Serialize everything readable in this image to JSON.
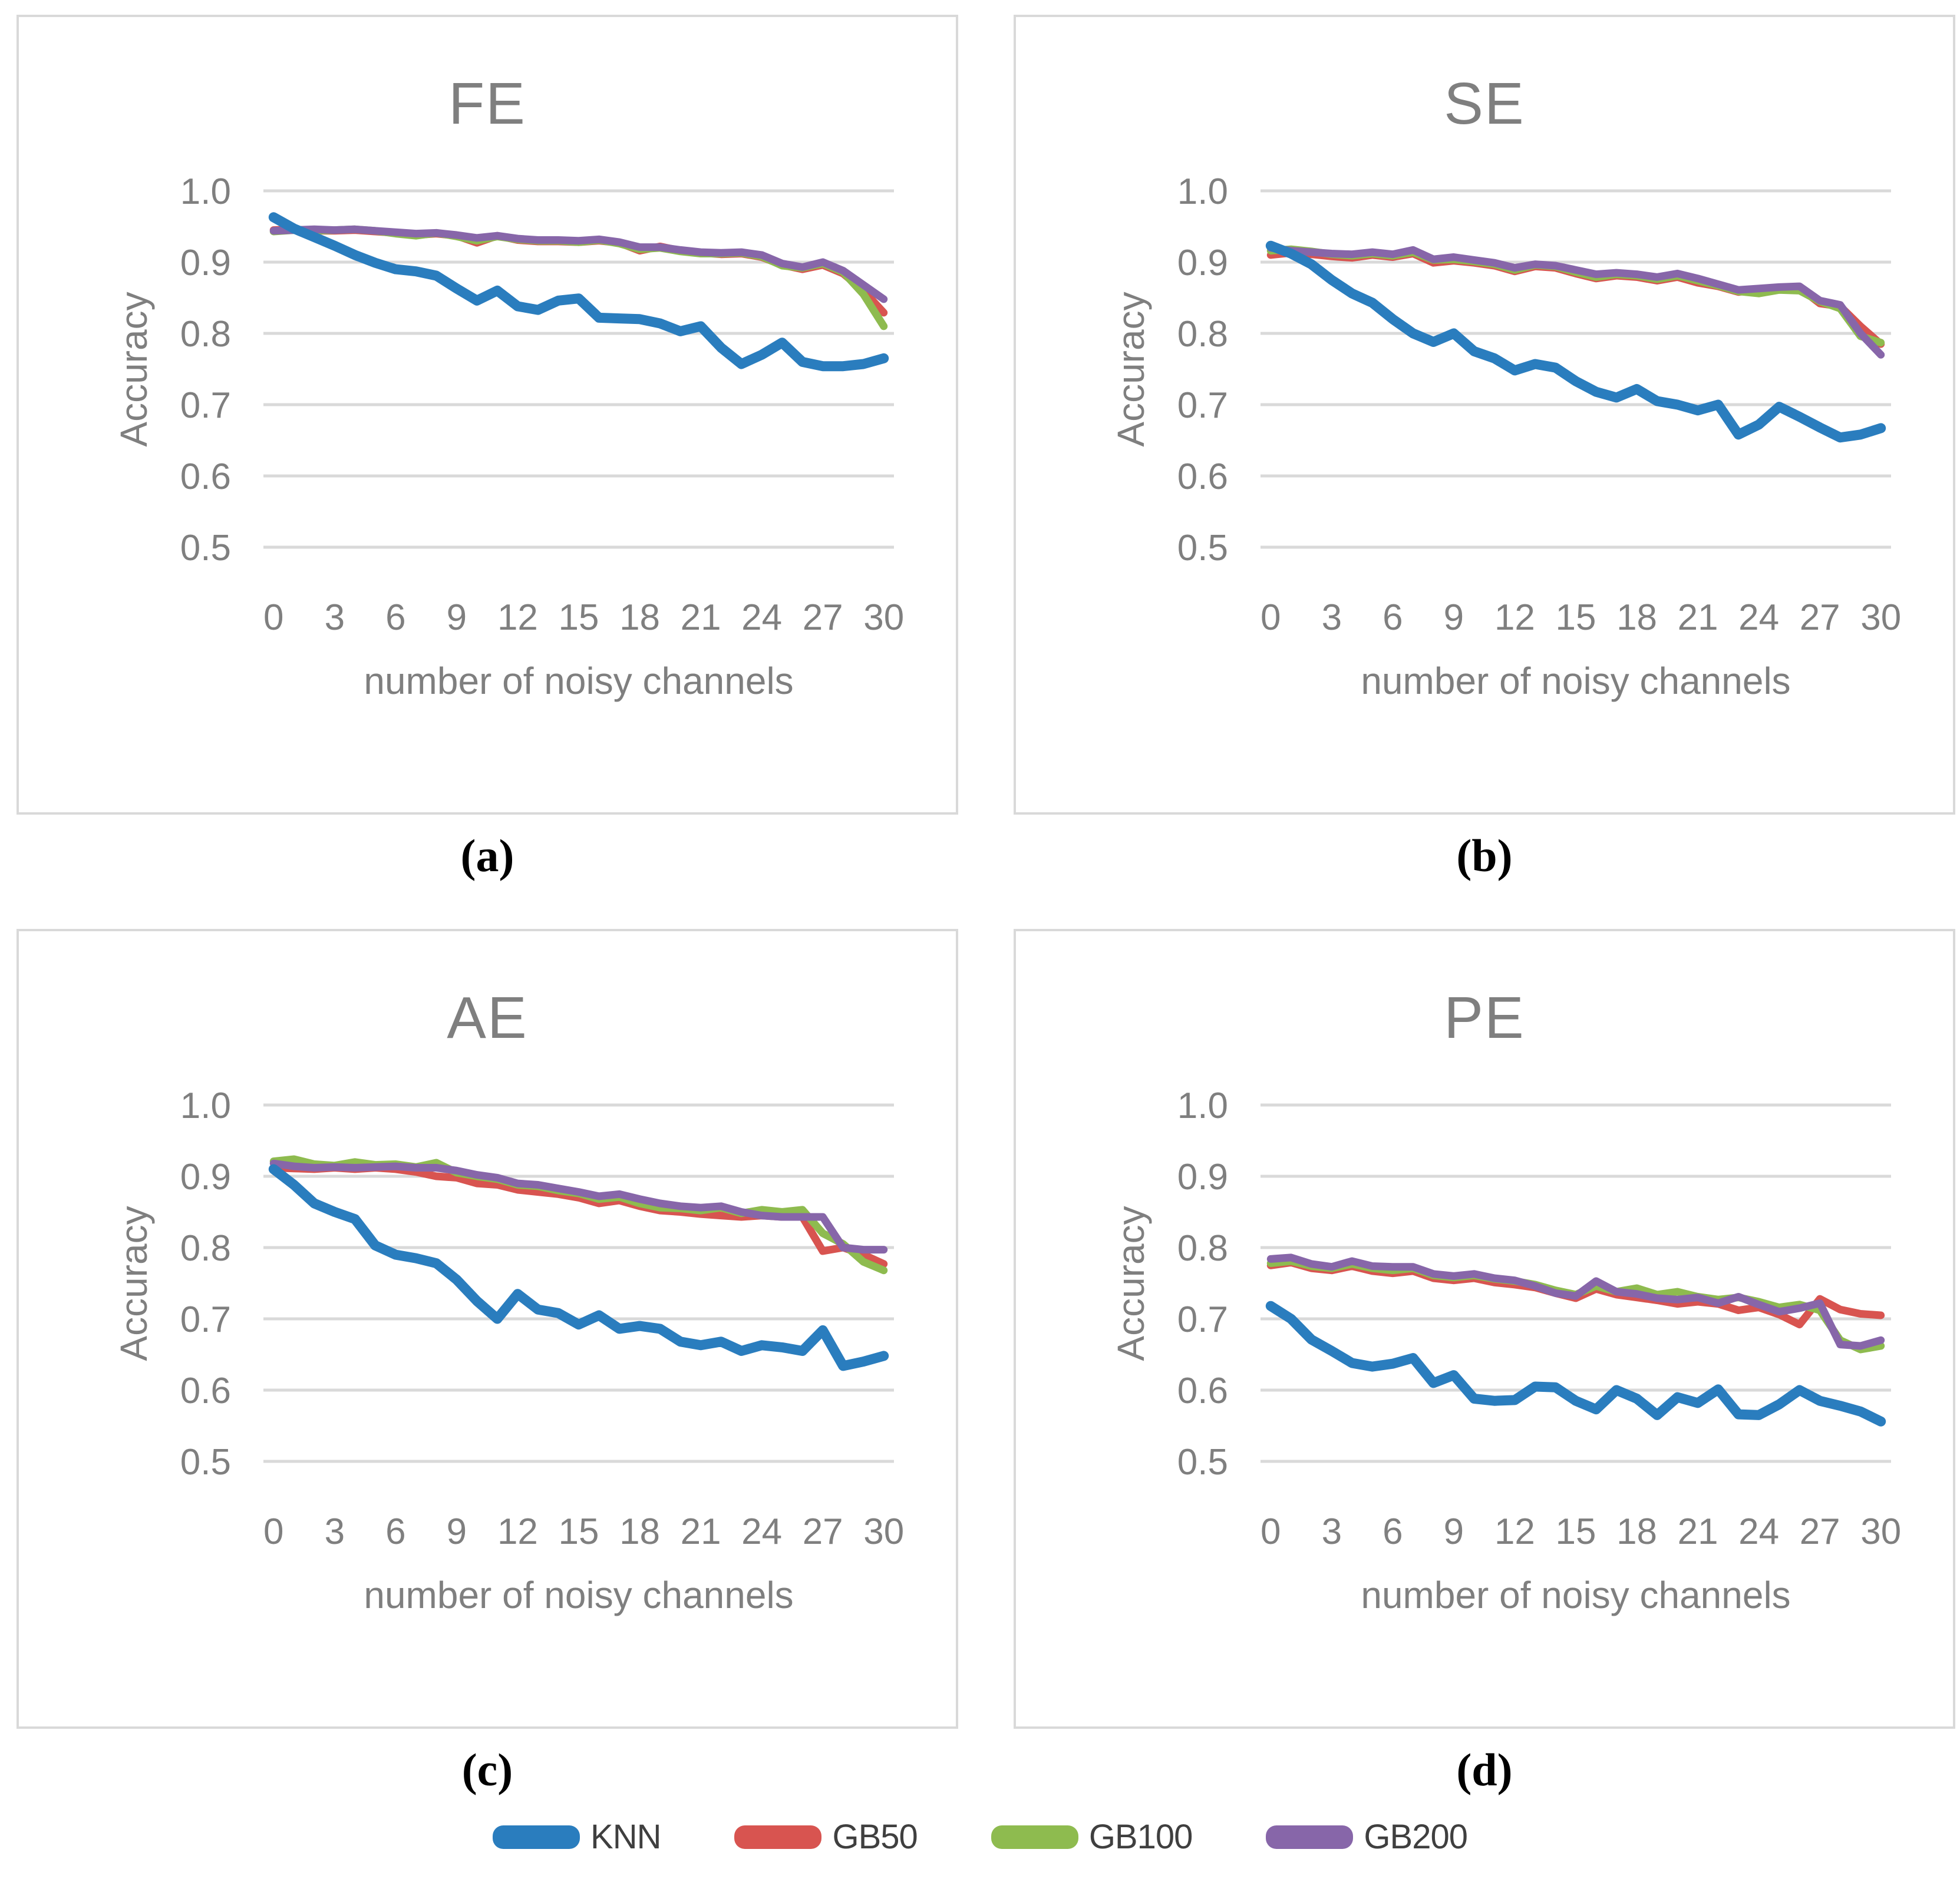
{
  "chart_data": [
    {
      "type": "line",
      "title": "FE",
      "caption": "(a)",
      "xlabel": "number of noisy channels",
      "ylabel": "Accuracy",
      "x": [
        0,
        1,
        2,
        3,
        4,
        5,
        6,
        7,
        8,
        9,
        10,
        11,
        12,
        13,
        14,
        15,
        16,
        17,
        18,
        19,
        20,
        21,
        22,
        23,
        24,
        25,
        26,
        27,
        28,
        29,
        30
      ],
      "xticks": [
        0,
        3,
        6,
        9,
        12,
        15,
        18,
        21,
        24,
        27,
        30
      ],
      "yticks": [
        "1.0",
        "0.9",
        "0.8",
        "0.7",
        "0.6",
        "0.5"
      ],
      "ylim": [
        0.5,
        1.0
      ],
      "grid": true,
      "series": [
        {
          "name": "GB50",
          "color": "#D85450",
          "width": 13,
          "values": [
            0.945,
            0.946,
            0.944,
            0.944,
            0.945,
            0.943,
            0.941,
            0.938,
            0.94,
            0.937,
            0.927,
            0.937,
            0.931,
            0.929,
            0.929,
            0.928,
            0.93,
            0.927,
            0.916,
            0.922,
            0.916,
            0.913,
            0.911,
            0.912,
            0.907,
            0.896,
            0.89,
            0.896,
            0.884,
            0.86,
            0.829
          ]
        },
        {
          "name": "GB100",
          "color": "#8EBB4F",
          "width": 13,
          "values": [
            0.943,
            0.945,
            0.944,
            0.945,
            0.946,
            0.944,
            0.94,
            0.937,
            0.941,
            0.936,
            0.93,
            0.936,
            0.932,
            0.93,
            0.93,
            0.928,
            0.931,
            0.926,
            0.918,
            0.92,
            0.915,
            0.912,
            0.912,
            0.913,
            0.908,
            0.895,
            0.892,
            0.898,
            0.886,
            0.855,
            0.81
          ]
        },
        {
          "name": "GB200",
          "color": "#8766A9",
          "width": 13,
          "values": [
            0.944,
            0.945,
            0.946,
            0.945,
            0.946,
            0.944,
            0.942,
            0.94,
            0.941,
            0.938,
            0.934,
            0.937,
            0.933,
            0.931,
            0.931,
            0.93,
            0.932,
            0.928,
            0.921,
            0.921,
            0.917,
            0.914,
            0.913,
            0.914,
            0.91,
            0.898,
            0.893,
            0.9,
            0.888,
            0.868,
            0.848
          ]
        },
        {
          "name": "KNN",
          "color": "#2A7DBE",
          "width": 17,
          "values": [
            0.963,
            0.947,
            0.935,
            0.923,
            0.91,
            0.899,
            0.89,
            0.887,
            0.881,
            0.863,
            0.846,
            0.86,
            0.838,
            0.833,
            0.846,
            0.849,
            0.822,
            0.821,
            0.82,
            0.814,
            0.803,
            0.81,
            0.78,
            0.757,
            0.77,
            0.787,
            0.76,
            0.754,
            0.754,
            0.757,
            0.765
          ]
        }
      ]
    },
    {
      "type": "line",
      "title": "SE",
      "caption": "(b)",
      "xlabel": "number of noisy channels",
      "ylabel": "Accuracy",
      "x": [
        0,
        1,
        2,
        3,
        4,
        5,
        6,
        7,
        8,
        9,
        10,
        11,
        12,
        13,
        14,
        15,
        16,
        17,
        18,
        19,
        20,
        21,
        22,
        23,
        24,
        25,
        26,
        27,
        28,
        29,
        30
      ],
      "xticks": [
        0,
        3,
        6,
        9,
        12,
        15,
        18,
        21,
        24,
        27,
        30
      ],
      "yticks": [
        "1.0",
        "0.9",
        "0.8",
        "0.7",
        "0.6",
        "0.5"
      ],
      "ylim": [
        0.5,
        1.0
      ],
      "grid": true,
      "series": [
        {
          "name": "GB50",
          "color": "#D85450",
          "width": 13,
          "values": [
            0.91,
            0.913,
            0.911,
            0.908,
            0.906,
            0.91,
            0.907,
            0.912,
            0.899,
            0.902,
            0.899,
            0.895,
            0.887,
            0.894,
            0.892,
            0.884,
            0.877,
            0.881,
            0.879,
            0.874,
            0.879,
            0.871,
            0.866,
            0.858,
            0.862,
            0.864,
            0.864,
            0.842,
            0.838,
            0.81,
            0.785
          ]
        },
        {
          "name": "GB100",
          "color": "#8EBB4F",
          "width": 13,
          "values": [
            0.916,
            0.918,
            0.915,
            0.911,
            0.909,
            0.912,
            0.909,
            0.914,
            0.903,
            0.904,
            0.901,
            0.897,
            0.889,
            0.896,
            0.894,
            0.886,
            0.879,
            0.883,
            0.881,
            0.876,
            0.881,
            0.874,
            0.867,
            0.859,
            0.856,
            0.861,
            0.86,
            0.845,
            0.835,
            0.796,
            0.787
          ]
        },
        {
          "name": "GB200",
          "color": "#8766A9",
          "width": 13,
          "values": [
            0.92,
            0.916,
            0.914,
            0.912,
            0.911,
            0.914,
            0.911,
            0.917,
            0.904,
            0.907,
            0.903,
            0.899,
            0.892,
            0.897,
            0.895,
            0.889,
            0.883,
            0.885,
            0.883,
            0.879,
            0.884,
            0.877,
            0.869,
            0.861,
            0.863,
            0.865,
            0.866,
            0.846,
            0.84,
            0.8,
            0.77
          ]
        },
        {
          "name": "KNN",
          "color": "#2A7DBE",
          "width": 17,
          "values": [
            0.923,
            0.912,
            0.897,
            0.875,
            0.856,
            0.843,
            0.82,
            0.8,
            0.788,
            0.8,
            0.775,
            0.765,
            0.748,
            0.757,
            0.752,
            0.733,
            0.718,
            0.71,
            0.722,
            0.705,
            0.7,
            0.692,
            0.7,
            0.658,
            0.672,
            0.697,
            0.683,
            0.668,
            0.654,
            0.658,
            0.667
          ]
        }
      ]
    },
    {
      "type": "line",
      "title": "AE",
      "caption": "(c)",
      "xlabel": "number of noisy channels",
      "ylabel": "Accuracy",
      "x": [
        0,
        1,
        2,
        3,
        4,
        5,
        6,
        7,
        8,
        9,
        10,
        11,
        12,
        13,
        14,
        15,
        16,
        17,
        18,
        19,
        20,
        21,
        22,
        23,
        24,
        25,
        26,
        27,
        28,
        29,
        30
      ],
      "xticks": [
        0,
        3,
        6,
        9,
        12,
        15,
        18,
        21,
        24,
        27,
        30
      ],
      "yticks": [
        "1.0",
        "0.9",
        "0.8",
        "0.7",
        "0.6",
        "0.5"
      ],
      "ylim": [
        0.5,
        1.0
      ],
      "grid": true,
      "series": [
        {
          "name": "GB50",
          "color": "#D85450",
          "width": 13,
          "values": [
            0.912,
            0.911,
            0.91,
            0.912,
            0.91,
            0.912,
            0.91,
            0.906,
            0.9,
            0.898,
            0.89,
            0.888,
            0.881,
            0.878,
            0.875,
            0.87,
            0.862,
            0.866,
            0.858,
            0.852,
            0.85,
            0.847,
            0.845,
            0.843,
            0.845,
            0.843,
            0.843,
            0.795,
            0.8,
            0.79,
            0.777
          ]
        },
        {
          "name": "GB100",
          "color": "#8EBB4F",
          "width": 13,
          "values": [
            0.921,
            0.924,
            0.917,
            0.915,
            0.92,
            0.916,
            0.917,
            0.913,
            0.919,
            0.905,
            0.9,
            0.896,
            0.888,
            0.886,
            0.88,
            0.876,
            0.868,
            0.871,
            0.862,
            0.856,
            0.855,
            0.852,
            0.856,
            0.848,
            0.853,
            0.85,
            0.853,
            0.82,
            0.805,
            0.78,
            0.768
          ]
        },
        {
          "name": "GB200",
          "color": "#8766A9",
          "width": 13,
          "values": [
            0.918,
            0.914,
            0.912,
            0.913,
            0.912,
            0.913,
            0.914,
            0.912,
            0.912,
            0.908,
            0.902,
            0.898,
            0.89,
            0.888,
            0.883,
            0.878,
            0.872,
            0.875,
            0.868,
            0.862,
            0.858,
            0.856,
            0.858,
            0.85,
            0.845,
            0.843,
            0.843,
            0.843,
            0.8,
            0.797,
            0.797
          ]
        },
        {
          "name": "KNN",
          "color": "#2A7DBE",
          "width": 17,
          "values": [
            0.91,
            0.888,
            0.862,
            0.85,
            0.84,
            0.803,
            0.79,
            0.785,
            0.778,
            0.755,
            0.725,
            0.7,
            0.735,
            0.713,
            0.708,
            0.692,
            0.705,
            0.686,
            0.69,
            0.686,
            0.668,
            0.663,
            0.668,
            0.655,
            0.663,
            0.66,
            0.655,
            0.684,
            0.634,
            0.64,
            0.648
          ]
        }
      ]
    },
    {
      "type": "line",
      "title": "PE",
      "caption": "(d)",
      "xlabel": "number of noisy channels",
      "ylabel": "Accuracy",
      "x": [
        0,
        1,
        2,
        3,
        4,
        5,
        6,
        7,
        8,
        9,
        10,
        11,
        12,
        13,
        14,
        15,
        16,
        17,
        18,
        19,
        20,
        21,
        22,
        23,
        24,
        25,
        26,
        27,
        28,
        29,
        30
      ],
      "xticks": [
        0,
        3,
        6,
        9,
        12,
        15,
        18,
        21,
        24,
        27,
        30
      ],
      "yticks": [
        "1.0",
        "0.9",
        "0.8",
        "0.7",
        "0.6",
        "0.5"
      ],
      "ylim": [
        0.5,
        1.0
      ],
      "grid": true,
      "series": [
        {
          "name": "GB50",
          "color": "#D85450",
          "width": 13,
          "values": [
            0.775,
            0.779,
            0.771,
            0.768,
            0.774,
            0.767,
            0.764,
            0.767,
            0.757,
            0.754,
            0.757,
            0.751,
            0.748,
            0.744,
            0.736,
            0.729,
            0.742,
            0.734,
            0.73,
            0.726,
            0.721,
            0.724,
            0.721,
            0.712,
            0.716,
            0.706,
            0.692,
            0.728,
            0.713,
            0.707,
            0.705
          ]
        },
        {
          "name": "GB100",
          "color": "#8EBB4F",
          "width": 13,
          "values": [
            0.778,
            0.781,
            0.774,
            0.771,
            0.777,
            0.771,
            0.768,
            0.771,
            0.761,
            0.758,
            0.761,
            0.756,
            0.753,
            0.748,
            0.74,
            0.734,
            0.746,
            0.738,
            0.743,
            0.734,
            0.738,
            0.731,
            0.727,
            0.73,
            0.724,
            0.716,
            0.72,
            0.712,
            0.67,
            0.657,
            0.662
          ]
        },
        {
          "name": "GB200",
          "color": "#8766A9",
          "width": 13,
          "values": [
            0.784,
            0.786,
            0.777,
            0.773,
            0.781,
            0.774,
            0.773,
            0.773,
            0.763,
            0.76,
            0.763,
            0.757,
            0.754,
            0.746,
            0.736,
            0.732,
            0.753,
            0.738,
            0.735,
            0.729,
            0.727,
            0.73,
            0.722,
            0.731,
            0.72,
            0.71,
            0.715,
            0.722,
            0.664,
            0.662,
            0.67
          ]
        },
        {
          "name": "KNN",
          "color": "#2A7DBE",
          "width": 17,
          "values": [
            0.718,
            0.7,
            0.671,
            0.655,
            0.638,
            0.633,
            0.637,
            0.645,
            0.61,
            0.621,
            0.588,
            0.585,
            0.586,
            0.605,
            0.604,
            0.585,
            0.573,
            0.6,
            0.588,
            0.565,
            0.59,
            0.582,
            0.601,
            0.566,
            0.565,
            0.58,
            0.6,
            0.585,
            0.578,
            0.57,
            0.556
          ]
        }
      ]
    }
  ],
  "legend": {
    "items": [
      {
        "label": "KNN",
        "color": "#2A7DBE"
      },
      {
        "label": "GB50",
        "color": "#D85450"
      },
      {
        "label": "GB100",
        "color": "#8EBB4F"
      },
      {
        "label": "GB200",
        "color": "#8766A9"
      }
    ]
  },
  "style": {
    "grid_color": "#D9D9D9",
    "border_color": "#D9D9D9",
    "text_color": "#7F7F7F"
  }
}
